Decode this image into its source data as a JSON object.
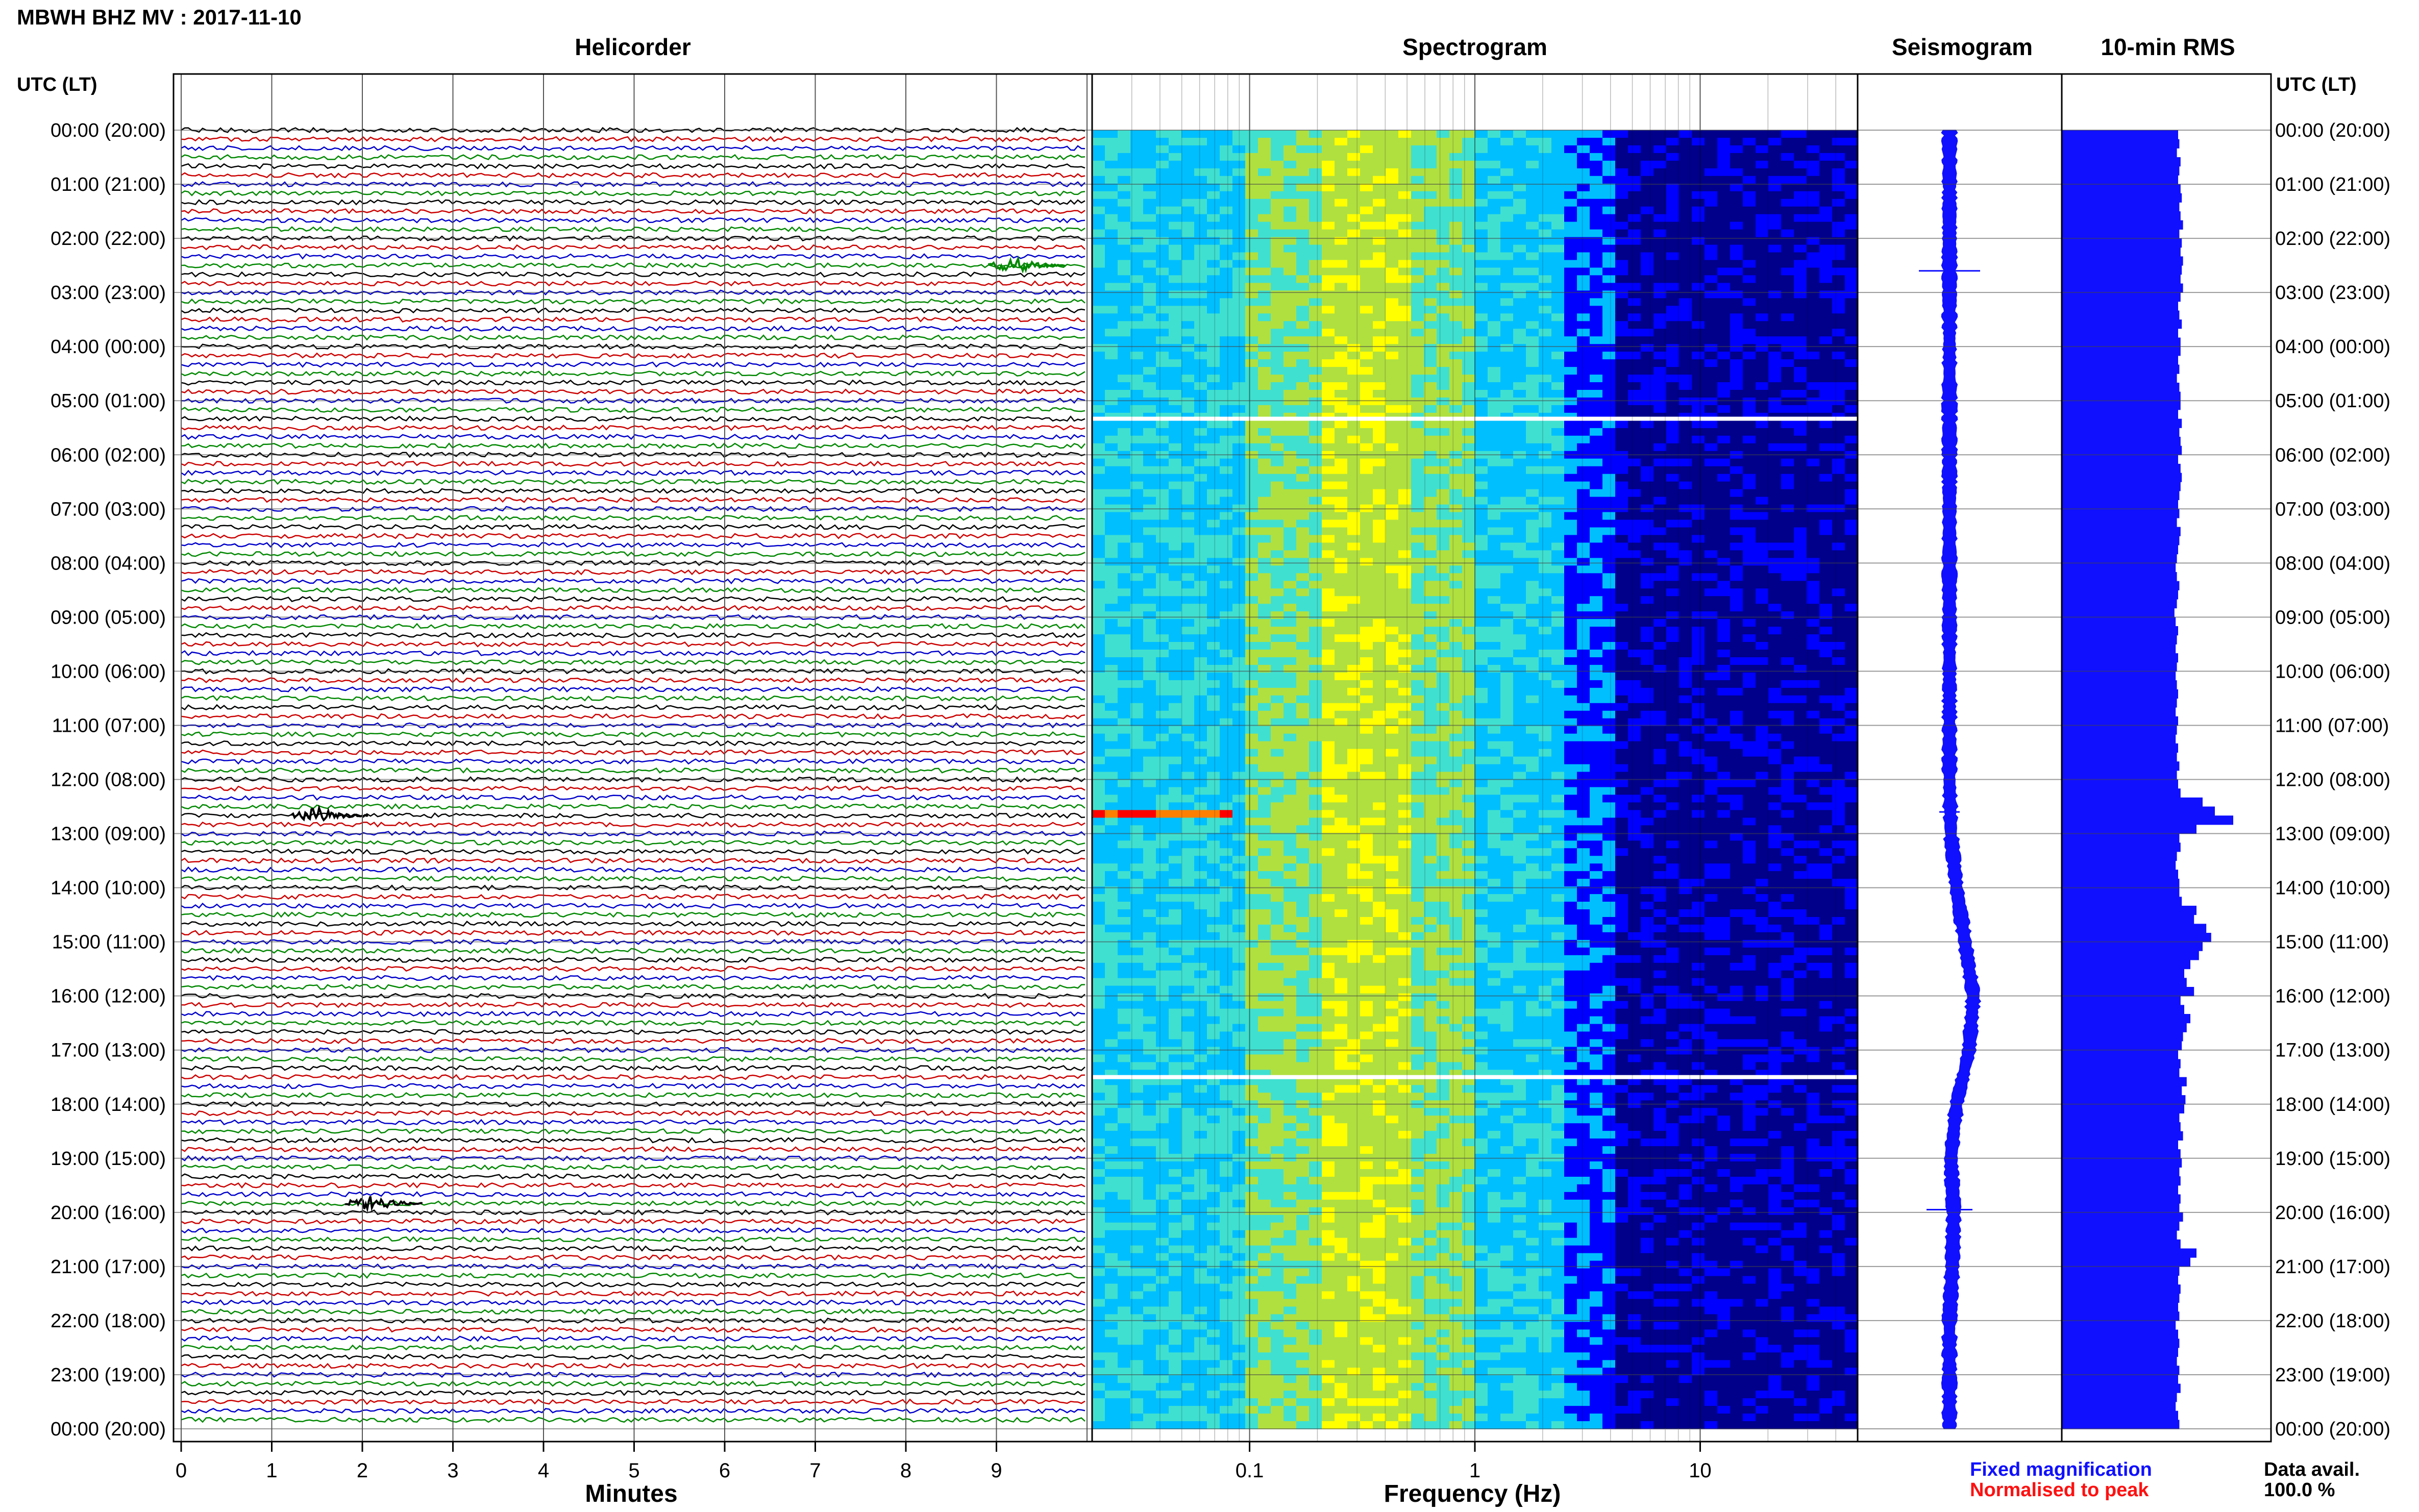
{
  "page": {
    "title": "MBWH BHZ MV : 2017-11-10",
    "axis_header_left": "UTC (LT)",
    "axis_header_right": "UTC (LT)",
    "legend": {
      "fixed": "Fixed magnification",
      "normalised": "Normalised to peak",
      "fixed_color": "#1010ff",
      "normalised_color": "#ff1010"
    },
    "availability": {
      "label": "Data avail.",
      "value": "100.0 %"
    },
    "time_labels": [
      "00:00 (20:00)",
      "01:00 (21:00)",
      "02:00 (22:00)",
      "03:00 (23:00)",
      "04:00 (00:00)",
      "05:00 (01:00)",
      "06:00 (02:00)",
      "07:00 (03:00)",
      "08:00 (04:00)",
      "09:00 (05:00)",
      "10:00 (06:00)",
      "11:00 (07:00)",
      "12:00 (08:00)",
      "13:00 (09:00)",
      "14:00 (10:00)",
      "15:00 (11:00)",
      "16:00 (12:00)",
      "17:00 (13:00)",
      "18:00 (14:00)",
      "19:00 (15:00)",
      "20:00 (16:00)",
      "21:00 (17:00)",
      "22:00 (18:00)",
      "23:00 (19:00)",
      "00:00 (20:00)"
    ]
  },
  "chart_data": [
    {
      "type": "line",
      "title": "Helicorder",
      "xlabel": "Minutes",
      "ylabel": "",
      "xlim": [
        0,
        10
      ],
      "x_ticks": [
        "0",
        "1",
        "2",
        "3",
        "4",
        "5",
        "6",
        "7",
        "8",
        "9"
      ],
      "trace_colors": [
        "#000000",
        "#cc0000",
        "#0000cc",
        "#008800"
      ],
      "traces_per_hour": 6,
      "events": [
        {
          "time": "02:30",
          "minute": 9.2,
          "color": "#008800"
        },
        {
          "time": "12:40",
          "minute": 1.5,
          "color": "#000000"
        },
        {
          "time": "19:50",
          "minute": 2.1,
          "color": "#000000"
        }
      ]
    },
    {
      "type": "heatmap",
      "title": "Spectrogram",
      "xlabel": "Frequency (Hz)",
      "x_scale": "log",
      "xlim": [
        0.02,
        50
      ],
      "x_ticks": [
        "0.1",
        "1",
        "10"
      ],
      "colormap": [
        "#00008b",
        "#0000ff",
        "#00bfff",
        "#40e0d0",
        "#b0e040",
        "#ffff00",
        "#ff8000",
        "#ff0000"
      ],
      "data_gaps_utc": [
        "05:20",
        "17:30"
      ]
    },
    {
      "type": "line",
      "title": "Seismogram",
      "x": [
        0,
        1,
        2,
        3,
        4,
        5,
        6,
        7,
        8,
        9,
        10,
        11,
        12,
        13,
        14,
        15,
        16,
        17,
        18,
        19,
        20,
        21,
        22,
        23,
        24
      ],
      "offset": [
        0,
        0,
        0,
        0,
        0,
        0,
        0,
        0,
        0,
        0,
        0,
        0,
        0,
        0.05,
        0.25,
        0.55,
        0.85,
        0.7,
        0.25,
        0.05,
        0.15,
        0.1,
        0,
        0,
        0
      ],
      "color": "#1010ff"
    },
    {
      "type": "bar",
      "title": "10-min RMS",
      "values": [
        0.95,
        0.96,
        0.94,
        0.97,
        0.96,
        0.95,
        0.97,
        0.98,
        0.96,
        0.97,
        0.99,
        0.96,
        0.98,
        0.97,
        0.99,
        0.98,
        0.97,
        0.99,
        0.97,
        0.95,
        0.96,
        0.98,
        0.95,
        0.97,
        0.97,
        0.95,
        0.96,
        0.94,
        0.96,
        0.97,
        0.97,
        0.95,
        0.98,
        0.96,
        0.97,
        0.98,
        0.95,
        0.97,
        0.98,
        0.97,
        0.96,
        0.95,
        0.96,
        0.94,
        0.97,
        0.96,
        0.95,
        0.94,
        0.93,
        0.94,
        0.96,
        0.95,
        0.94,
        0.92,
        0.93,
        0.95,
        0.94,
        0.93,
        0.95,
        0.94,
        0.93,
        0.94,
        0.95,
        0.94,
        0.93,
        0.95,
        0.94,
        0.93,
        0.95,
        0.94,
        0.96,
        0.94,
        0.95,
        0.97,
        1.15,
        1.25,
        1.4,
        1.1,
        0.96,
        0.97,
        0.94,
        0.93,
        0.95,
        0.96,
        0.96,
        0.98,
        1.1,
        1.08,
        1.18,
        1.22,
        1.15,
        1.12,
        1.05,
        1.0,
        1.02,
        1.08,
        0.97,
        1.0,
        1.05,
        1.02,
        0.99,
        0.98,
        0.95,
        0.97,
        0.96,
        1.02,
        0.98,
        1.01,
        1.0,
        0.96,
        0.97,
        0.99,
        0.95,
        0.97,
        0.98,
        0.96,
        0.97,
        0.95,
        0.97,
        0.96,
        0.99,
        0.96,
        0.94,
        0.97,
        1.1,
        1.05,
        0.96,
        0.95,
        0.97,
        0.96,
        0.95,
        0.96,
        0.93,
        0.95,
        0.96,
        0.95,
        0.94,
        0.96,
        0.95,
        0.97,
        0.94,
        0.93,
        0.95,
        0.96
      ],
      "xlim": [
        0,
        1.5
      ],
      "color": "#1010ff"
    }
  ]
}
